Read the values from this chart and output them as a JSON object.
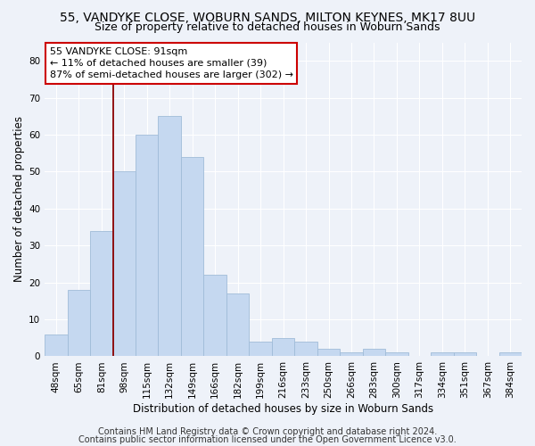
{
  "title": "55, VANDYKE CLOSE, WOBURN SANDS, MILTON KEYNES, MK17 8UU",
  "subtitle": "Size of property relative to detached houses in Woburn Sands",
  "xlabel": "Distribution of detached houses by size in Woburn Sands",
  "ylabel": "Number of detached properties",
  "categories": [
    "48sqm",
    "65sqm",
    "81sqm",
    "98sqm",
    "115sqm",
    "132sqm",
    "149sqm",
    "166sqm",
    "182sqm",
    "199sqm",
    "216sqm",
    "233sqm",
    "250sqm",
    "266sqm",
    "283sqm",
    "300sqm",
    "317sqm",
    "334sqm",
    "351sqm",
    "367sqm",
    "384sqm"
  ],
  "values": [
    6,
    18,
    34,
    50,
    60,
    65,
    54,
    22,
    17,
    4,
    5,
    4,
    2,
    1,
    2,
    1,
    0,
    1,
    1,
    0,
    1
  ],
  "bar_color": "#c5d8f0",
  "bar_edge_color": "#a0bcd8",
  "vline_color": "#8b0000",
  "annotation_line1": "55 VANDYKE CLOSE: 91sqm",
  "annotation_line2": "← 11% of detached houses are smaller (39)",
  "annotation_line3": "87% of semi-detached houses are larger (302) →",
  "footer_line1": "Contains HM Land Registry data © Crown copyright and database right 2024.",
  "footer_line2": "Contains public sector information licensed under the Open Government Licence v3.0.",
  "ylim": [
    0,
    85
  ],
  "yticks": [
    0,
    10,
    20,
    30,
    40,
    50,
    60,
    70,
    80
  ],
  "background_color": "#eef2f9",
  "grid_color": "#ffffff",
  "title_fontsize": 10,
  "subtitle_fontsize": 9,
  "axis_label_fontsize": 8.5,
  "tick_fontsize": 7.5,
  "annotation_fontsize": 8,
  "footer_fontsize": 7
}
